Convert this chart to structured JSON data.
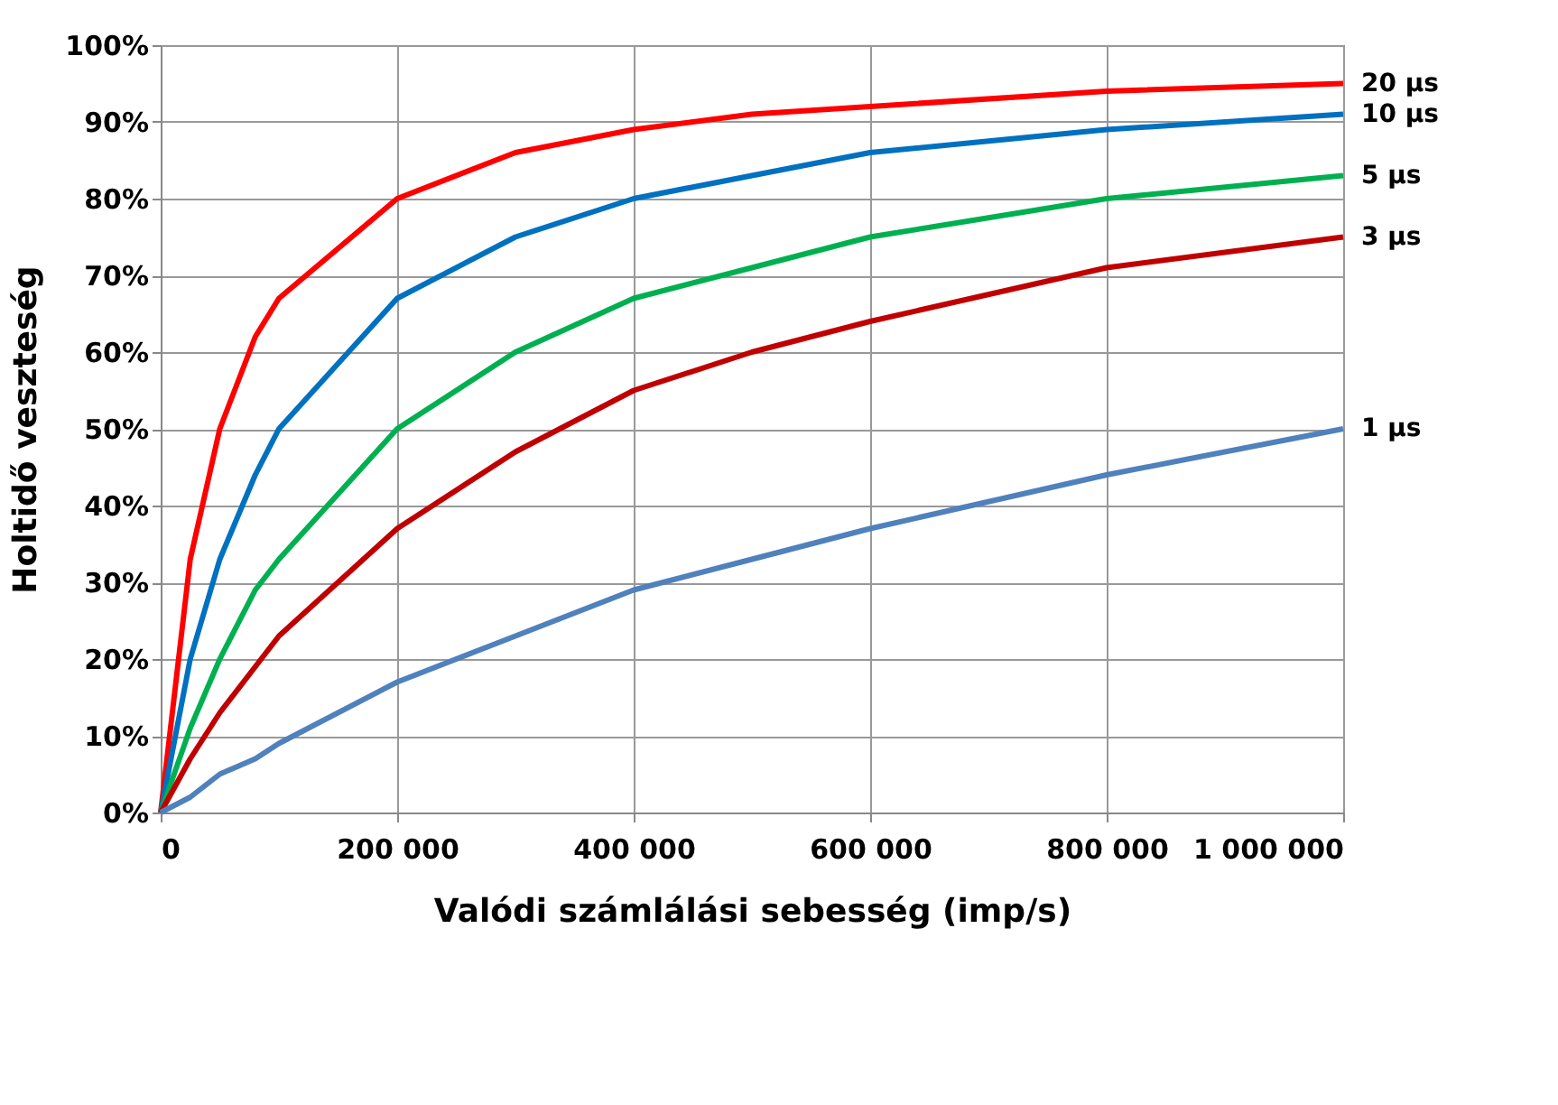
{
  "chart_data": {
    "type": "line",
    "xlabel": "Valódi számlálási sebesség (imp/s)",
    "ylabel": "Holtidő veszteség",
    "x": [
      0,
      25000,
      50000,
      80000,
      100000,
      200000,
      300000,
      400000,
      500000,
      600000,
      800000,
      1000000
    ],
    "series": [
      {
        "name": "20 µs",
        "color": "#ff0000",
        "values": [
          0,
          33,
          50,
          62,
          67,
          80,
          86,
          89,
          91,
          92,
          94,
          95
        ]
      },
      {
        "name": "10 µs",
        "color": "#0070c0",
        "values": [
          0,
          20,
          33,
          44,
          50,
          67,
          75,
          80,
          83,
          86,
          89,
          91
        ]
      },
      {
        "name": "5 µs",
        "color": "#00b050",
        "values": [
          0,
          11,
          20,
          29,
          33,
          50,
          60,
          67,
          71,
          75,
          80,
          83
        ]
      },
      {
        "name": "3 µs",
        "color": "#c00000",
        "values": [
          0,
          7,
          13,
          19,
          23,
          37,
          47,
          55,
          60,
          64,
          71,
          75
        ]
      },
      {
        "name": "1 µs",
        "color": "#4f81bd",
        "values": [
          0,
          2,
          5,
          7,
          9,
          17,
          23,
          29,
          33,
          37,
          44,
          50
        ]
      }
    ],
    "xlim": [
      0,
      1000000
    ],
    "xticks": [
      0,
      {
        "value": 200000,
        "label": "200 000"
      },
      {
        "value": 400000,
        "label": "400 000"
      },
      {
        "value": 600000,
        "label": "600 000"
      },
      {
        "value": 800000,
        "label": "800 000"
      },
      {
        "value": 1000000,
        "label": "1 000 000"
      }
    ],
    "ylim": [
      0,
      100
    ],
    "yticks": [
      {
        "value": 0,
        "label": "0%"
      },
      {
        "value": 10,
        "label": "10%"
      },
      {
        "value": 20,
        "label": "20%"
      },
      {
        "value": 30,
        "label": "30%"
      },
      {
        "value": 40,
        "label": "40%"
      },
      {
        "value": 50,
        "label": "50%"
      },
      {
        "value": 60,
        "label": "60%"
      },
      {
        "value": 70,
        "label": "70%"
      },
      {
        "value": 80,
        "label": "80%"
      },
      {
        "value": 90,
        "label": "90%"
      },
      {
        "value": 100,
        "label": "100%"
      }
    ],
    "grid": true,
    "legend": false,
    "marker": "none",
    "line_style": "solid"
  }
}
